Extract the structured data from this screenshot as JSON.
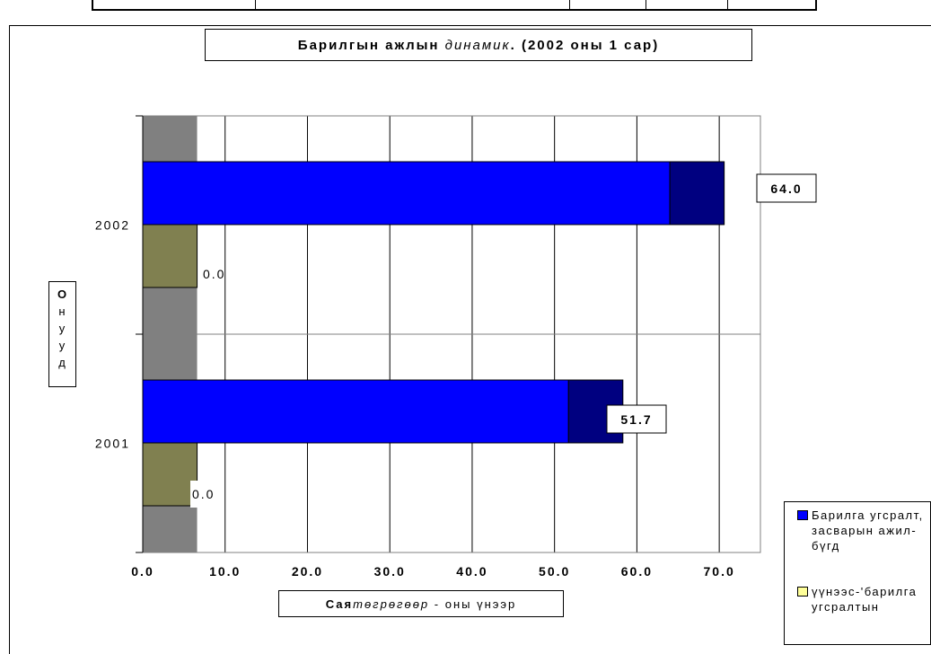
{
  "chart_data": {
    "type": "bar",
    "orientation": "horizontal",
    "title": {
      "bold_part": "Барилгын ажлын",
      "italic_part": "динамик",
      "rest": ". (2002 оны 1 сар)"
    },
    "xlabel": {
      "bold_part": "Сая",
      "italic_part": "төгрөгөөр",
      "rest": " - оны үнээр"
    },
    "ylabel": [
      "О",
      "н",
      "у",
      "у",
      "д"
    ],
    "categories": [
      "2002",
      "2001"
    ],
    "xlim": [
      0,
      75
    ],
    "xticks": [
      "0.0",
      "10.0",
      "20.0",
      "30.0",
      "40.0",
      "50.0",
      "60.0",
      "70.0"
    ],
    "grid": true,
    "series": [
      {
        "name": "Барилга угсралт, засварын ажил-бүгд",
        "values": [
          64.0,
          51.7
        ],
        "color": "#0000ff"
      },
      {
        "name": "үүнээс-'барилга угсралтын",
        "values": [
          0.0,
          0.0
        ],
        "color": "#808050"
      }
    ],
    "bar_extension_values": [
      6.6,
      6.6
    ],
    "extension_color": "#000080",
    "background_band_value": 6.6,
    "background_band_color": "#808080",
    "data_labels": {
      "series_0": [
        "64.0",
        "51.7"
      ],
      "series_1": [
        "0.0",
        "0.0"
      ]
    },
    "legend_placement": "bottom-right",
    "legend_swatches": [
      "#0000ff",
      "#ffff99"
    ]
  }
}
